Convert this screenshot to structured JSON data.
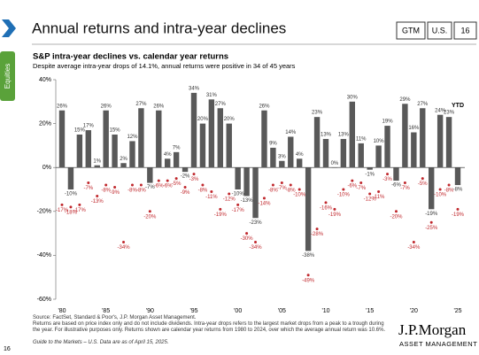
{
  "header": {
    "title": "Annual returns and intra-year declines",
    "tags": [
      "GTM",
      "U.S.",
      "16"
    ]
  },
  "sidebar": {
    "tab": "Equities",
    "page_number": "16"
  },
  "chart_data": {
    "type": "bar-dot",
    "title": "S&P intra-year declines vs. calendar year returns",
    "subtitle": "Despite average intra-year drops of 14.1%, annual returns were positive in 34 of 45 years",
    "annotation": "YTD",
    "categories": [
      "'80",
      null,
      null,
      null,
      null,
      "'85",
      null,
      null,
      null,
      null,
      "'90",
      null,
      null,
      null,
      null,
      "'95",
      null,
      null,
      null,
      null,
      "'00",
      null,
      null,
      null,
      null,
      "'05",
      null,
      null,
      null,
      null,
      "'10",
      null,
      null,
      null,
      null,
      "'15",
      null,
      null,
      null,
      null,
      "'20",
      null,
      null,
      null,
      null,
      "'25"
    ],
    "series": [
      {
        "name": "Calendar year return",
        "color": "#595959",
        "label_color": "#333333",
        "values": [
          26,
          -10,
          15,
          17,
          1,
          26,
          15,
          2,
          12,
          27,
          -7,
          26,
          4,
          7,
          -2,
          34,
          20,
          31,
          27,
          20,
          -10,
          -13,
          -23,
          26,
          9,
          3,
          14,
          4,
          -38,
          23,
          13,
          0,
          13,
          30,
          11,
          -1,
          10,
          19,
          -6,
          29,
          16,
          27,
          -19,
          24,
          23,
          -8
        ],
        "value_labels": [
          "26%",
          "-10%",
          "15%",
          "17%",
          "1%",
          "26%",
          "15%",
          "2%",
          "12%",
          "27%",
          "-7%",
          "26%",
          "4%",
          "7%",
          "-2%",
          "34%",
          "20%",
          "31%",
          "27%",
          "20%",
          "-10%",
          "-13%",
          "-23%",
          "26%",
          "9%",
          "3%",
          "14%",
          "4%",
          "-38%",
          "23%",
          "13%",
          "0%",
          "13%",
          "30%",
          "11%",
          "-1%",
          "10%",
          "19%",
          "-6%",
          "29%",
          "16%",
          "27%",
          "-19%",
          "24%",
          "23%",
          "-8%"
        ]
      },
      {
        "name": "Intra-year decline",
        "color": "#c0282d",
        "label_color": "#c0282d",
        "values": [
          -17,
          -18,
          -17,
          -7,
          -13,
          -8,
          -9,
          -34,
          -8,
          -8,
          -20,
          -6,
          -6,
          -5,
          -9,
          -3,
          -8,
          -11,
          -19,
          -12,
          -17,
          -30,
          -34,
          -14,
          -8,
          -7,
          -8,
          -10,
          -49,
          -28,
          -16,
          -19,
          -10,
          -6,
          -7,
          -12,
          -11,
          -3,
          -20,
          -7,
          -34,
          -5,
          -25,
          -10,
          -8,
          -19
        ],
        "value_labels": [
          "-17%",
          "-18%",
          "-17%",
          "-7%",
          "-13%",
          "-8%",
          "-9%",
          "-34%",
          "-8%",
          "-8%",
          "-20%",
          "-6%",
          "-6%",
          "-5%",
          "-9%",
          "-3%",
          "-8%",
          "-11%",
          "-19%",
          "-12%",
          "-17%",
          "-30%",
          "-34%",
          "-14%",
          "-8%",
          "-7%",
          "-8%",
          "-10%",
          "-49%",
          "-28%",
          "-16%",
          "-19%",
          "-10%",
          "-6%",
          "-7%",
          "-12%",
          "-11%",
          "-3%",
          "-20%",
          "-7%",
          "-34%",
          "-5%",
          "-25%",
          "-10%",
          "-8%",
          "-19%"
        ]
      }
    ],
    "ylim": [
      -60,
      40
    ],
    "yticks": [
      {
        "value": -60,
        "label": "-60%"
      },
      {
        "value": -40,
        "label": "-40%"
      },
      {
        "value": -20,
        "label": "-20%"
      },
      {
        "value": 0,
        "label": "0%"
      },
      {
        "value": 20,
        "label": "20%"
      },
      {
        "value": 40,
        "label": "40%"
      }
    ]
  },
  "footer": {
    "notes": [
      "Source: FactSet, Standard & Poor's, J.P. Morgan Asset Management.",
      "Returns are based on price index only and do not include dividends. Intra-year drops refers to the largest market drops from a peak to a trough during the year. For illustrative purposes only. Returns shown are calendar year returns from 1980 to 2024, over which the average annual return was 10.6%.",
      "Guide to the Markets – U.S. Data are as of April 15, 2025."
    ],
    "logo": "J.P.Morgan",
    "logo_sub": "ASSET MANAGEMENT"
  }
}
